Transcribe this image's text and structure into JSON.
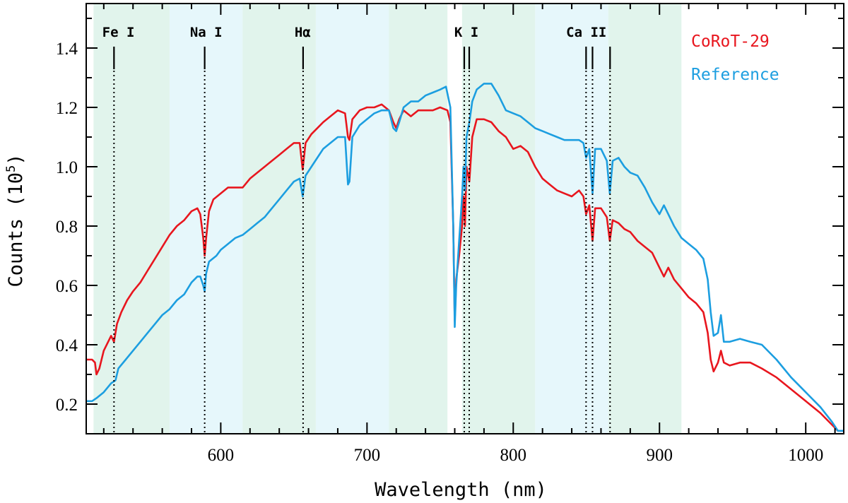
{
  "chart_data": {
    "type": "line",
    "xlabel": "Wavelength (nm)",
    "ylabel_text": "Counts (10",
    "ylabel_exp": "5",
    "ylabel_close": ")",
    "xlim": [
      508,
      1026
    ],
    "ylim": [
      0.1,
      1.55
    ],
    "x_ticks": [
      600,
      700,
      800,
      900,
      1000
    ],
    "x_tick_labels": [
      "600",
      "700",
      "800",
      "900",
      "1000"
    ],
    "y_ticks": [
      0.2,
      0.4,
      0.6,
      0.8,
      1.0,
      1.2,
      1.4
    ],
    "y_tick_labels": [
      "0.2",
      "0.4",
      "0.6",
      "0.8",
      "1.0",
      "1.2",
      "1.4"
    ],
    "bands": [
      {
        "x0": 513,
        "x1": 565,
        "color": "#e1f4ec"
      },
      {
        "x0": 565,
        "x1": 615,
        "color": "#e6f7fb"
      },
      {
        "x0": 615,
        "x1": 665,
        "color": "#e1f4ec"
      },
      {
        "x0": 665,
        "x1": 715,
        "color": "#e6f7fb"
      },
      {
        "x0": 715,
        "x1": 755,
        "color": "#e1f4ec"
      },
      {
        "x0": 765,
        "x1": 815,
        "color": "#e1f4ec"
      },
      {
        "x0": 815,
        "x1": 865,
        "color": "#e6f7fb"
      },
      {
        "x0": 865,
        "x1": 915,
        "color": "#e1f4ec"
      }
    ],
    "spectral_lines": [
      {
        "label": "Fe I",
        "label_x": 530,
        "lines": [
          527
        ]
      },
      {
        "label": "Na I",
        "label_x": 590,
        "lines": [
          589
        ]
      },
      {
        "label": "Hα",
        "label_x": 656,
        "lines": [
          656.3
        ]
      },
      {
        "label": "K I",
        "label_x": 768,
        "lines": [
          766.5,
          769.9
        ]
      },
      {
        "label": "Ca II",
        "label_x": 850,
        "lines": [
          849.8,
          854.2,
          866.2
        ]
      }
    ],
    "series": [
      {
        "name": "CoRoT-29",
        "color": "#e8161e",
        "points": [
          [
            508,
            0.35
          ],
          [
            512,
            0.35
          ],
          [
            514,
            0.34
          ],
          [
            515,
            0.3
          ],
          [
            517,
            0.32
          ],
          [
            520,
            0.38
          ],
          [
            525,
            0.43
          ],
          [
            527,
            0.41
          ],
          [
            529,
            0.47
          ],
          [
            532,
            0.51
          ],
          [
            536,
            0.55
          ],
          [
            540,
            0.58
          ],
          [
            545,
            0.61
          ],
          [
            550,
            0.65
          ],
          [
            555,
            0.69
          ],
          [
            560,
            0.73
          ],
          [
            565,
            0.77
          ],
          [
            570,
            0.8
          ],
          [
            575,
            0.82
          ],
          [
            580,
            0.85
          ],
          [
            584,
            0.86
          ],
          [
            586,
            0.84
          ],
          [
            588,
            0.76
          ],
          [
            589,
            0.7
          ],
          [
            590,
            0.76
          ],
          [
            592,
            0.85
          ],
          [
            595,
            0.89
          ],
          [
            600,
            0.91
          ],
          [
            605,
            0.93
          ],
          [
            610,
            0.93
          ],
          [
            615,
            0.93
          ],
          [
            620,
            0.96
          ],
          [
            625,
            0.98
          ],
          [
            630,
            1.0
          ],
          [
            635,
            1.02
          ],
          [
            640,
            1.04
          ],
          [
            645,
            1.06
          ],
          [
            650,
            1.08
          ],
          [
            654,
            1.08
          ],
          [
            656,
            0.99
          ],
          [
            658,
            1.08
          ],
          [
            662,
            1.11
          ],
          [
            666,
            1.13
          ],
          [
            670,
            1.15
          ],
          [
            675,
            1.17
          ],
          [
            680,
            1.19
          ],
          [
            685,
            1.18
          ],
          [
            687,
            1.1
          ],
          [
            688,
            1.09
          ],
          [
            690,
            1.16
          ],
          [
            695,
            1.19
          ],
          [
            700,
            1.2
          ],
          [
            705,
            1.2
          ],
          [
            710,
            1.21
          ],
          [
            715,
            1.19
          ],
          [
            718,
            1.15
          ],
          [
            720,
            1.13
          ],
          [
            722,
            1.16
          ],
          [
            725,
            1.19
          ],
          [
            730,
            1.17
          ],
          [
            735,
            1.19
          ],
          [
            740,
            1.19
          ],
          [
            745,
            1.19
          ],
          [
            750,
            1.2
          ],
          [
            755,
            1.19
          ],
          [
            757,
            1.15
          ],
          [
            759,
            0.8
          ],
          [
            760,
            0.48
          ],
          [
            761,
            0.62
          ],
          [
            763,
            0.7
          ],
          [
            765,
            0.8
          ],
          [
            766,
            0.9
          ],
          [
            767,
            0.8
          ],
          [
            768,
            1.0
          ],
          [
            770,
            0.95
          ],
          [
            772,
            1.1
          ],
          [
            775,
            1.16
          ],
          [
            780,
            1.16
          ],
          [
            785,
            1.15
          ],
          [
            790,
            1.12
          ],
          [
            795,
            1.1
          ],
          [
            800,
            1.06
          ],
          [
            805,
            1.07
          ],
          [
            810,
            1.05
          ],
          [
            815,
            1.0
          ],
          [
            820,
            0.96
          ],
          [
            825,
            0.94
          ],
          [
            830,
            0.92
          ],
          [
            835,
            0.91
          ],
          [
            840,
            0.9
          ],
          [
            845,
            0.92
          ],
          [
            848,
            0.9
          ],
          [
            849.8,
            0.84
          ],
          [
            852,
            0.87
          ],
          [
            854.2,
            0.75
          ],
          [
            856,
            0.86
          ],
          [
            860,
            0.86
          ],
          [
            864,
            0.83
          ],
          [
            866,
            0.75
          ],
          [
            868,
            0.82
          ],
          [
            872,
            0.81
          ],
          [
            876,
            0.79
          ],
          [
            880,
            0.78
          ],
          [
            885,
            0.75
          ],
          [
            890,
            0.73
          ],
          [
            895,
            0.71
          ],
          [
            900,
            0.66
          ],
          [
            903,
            0.63
          ],
          [
            906,
            0.66
          ],
          [
            910,
            0.62
          ],
          [
            915,
            0.59
          ],
          [
            920,
            0.56
          ],
          [
            925,
            0.54
          ],
          [
            930,
            0.51
          ],
          [
            933,
            0.44
          ],
          [
            935,
            0.35
          ],
          [
            937,
            0.31
          ],
          [
            940,
            0.34
          ],
          [
            942,
            0.38
          ],
          [
            944,
            0.34
          ],
          [
            948,
            0.33
          ],
          [
            955,
            0.34
          ],
          [
            962,
            0.34
          ],
          [
            970,
            0.32
          ],
          [
            980,
            0.29
          ],
          [
            990,
            0.25
          ],
          [
            1000,
            0.21
          ],
          [
            1010,
            0.17
          ],
          [
            1018,
            0.13
          ],
          [
            1022,
            0.11
          ],
          [
            1026,
            0.11
          ]
        ]
      },
      {
        "name": "Reference",
        "color": "#1c9ee0",
        "points": [
          [
            508,
            0.21
          ],
          [
            512,
            0.21
          ],
          [
            515,
            0.22
          ],
          [
            520,
            0.24
          ],
          [
            525,
            0.27
          ],
          [
            528,
            0.28
          ],
          [
            530,
            0.32
          ],
          [
            535,
            0.35
          ],
          [
            540,
            0.38
          ],
          [
            545,
            0.41
          ],
          [
            550,
            0.44
          ],
          [
            555,
            0.47
          ],
          [
            560,
            0.5
          ],
          [
            565,
            0.52
          ],
          [
            570,
            0.55
          ],
          [
            575,
            0.57
          ],
          [
            580,
            0.61
          ],
          [
            584,
            0.63
          ],
          [
            586,
            0.63
          ],
          [
            588,
            0.6
          ],
          [
            589,
            0.58
          ],
          [
            590,
            0.64
          ],
          [
            592,
            0.68
          ],
          [
            597,
            0.7
          ],
          [
            600,
            0.72
          ],
          [
            605,
            0.74
          ],
          [
            610,
            0.76
          ],
          [
            615,
            0.77
          ],
          [
            620,
            0.79
          ],
          [
            625,
            0.81
          ],
          [
            630,
            0.83
          ],
          [
            635,
            0.86
          ],
          [
            640,
            0.89
          ],
          [
            645,
            0.92
          ],
          [
            650,
            0.95
          ],
          [
            654,
            0.96
          ],
          [
            656,
            0.9
          ],
          [
            658,
            0.97
          ],
          [
            662,
            1.0
          ],
          [
            666,
            1.03
          ],
          [
            670,
            1.06
          ],
          [
            675,
            1.08
          ],
          [
            680,
            1.1
          ],
          [
            685,
            1.1
          ],
          [
            687,
            0.94
          ],
          [
            688,
            0.95
          ],
          [
            690,
            1.1
          ],
          [
            695,
            1.14
          ],
          [
            700,
            1.16
          ],
          [
            705,
            1.18
          ],
          [
            710,
            1.19
          ],
          [
            715,
            1.19
          ],
          [
            718,
            1.13
          ],
          [
            720,
            1.12
          ],
          [
            722,
            1.15
          ],
          [
            725,
            1.2
          ],
          [
            730,
            1.22
          ],
          [
            735,
            1.22
          ],
          [
            740,
            1.24
          ],
          [
            745,
            1.25
          ],
          [
            750,
            1.26
          ],
          [
            754,
            1.27
          ],
          [
            757,
            1.2
          ],
          [
            759,
            0.8
          ],
          [
            760,
            0.46
          ],
          [
            761,
            0.6
          ],
          [
            763,
            0.75
          ],
          [
            765,
            0.9
          ],
          [
            766,
            1.0
          ],
          [
            767,
            0.92
          ],
          [
            768,
            1.1
          ],
          [
            770,
            1.15
          ],
          [
            772,
            1.22
          ],
          [
            775,
            1.26
          ],
          [
            780,
            1.28
          ],
          [
            785,
            1.28
          ],
          [
            790,
            1.24
          ],
          [
            795,
            1.19
          ],
          [
            800,
            1.18
          ],
          [
            805,
            1.17
          ],
          [
            810,
            1.15
          ],
          [
            815,
            1.13
          ],
          [
            820,
            1.12
          ],
          [
            825,
            1.11
          ],
          [
            830,
            1.1
          ],
          [
            835,
            1.09
          ],
          [
            840,
            1.09
          ],
          [
            845,
            1.09
          ],
          [
            848,
            1.08
          ],
          [
            849.8,
            1.03
          ],
          [
            852,
            1.06
          ],
          [
            854.2,
            0.91
          ],
          [
            856,
            1.06
          ],
          [
            860,
            1.06
          ],
          [
            864,
            1.02
          ],
          [
            866,
            0.91
          ],
          [
            868,
            1.02
          ],
          [
            872,
            1.03
          ],
          [
            876,
            1.0
          ],
          [
            880,
            0.98
          ],
          [
            885,
            0.97
          ],
          [
            890,
            0.93
          ],
          [
            895,
            0.88
          ],
          [
            900,
            0.84
          ],
          [
            903,
            0.87
          ],
          [
            906,
            0.84
          ],
          [
            910,
            0.8
          ],
          [
            915,
            0.76
          ],
          [
            920,
            0.74
          ],
          [
            925,
            0.72
          ],
          [
            930,
            0.69
          ],
          [
            933,
            0.62
          ],
          [
            935,
            0.51
          ],
          [
            937,
            0.43
          ],
          [
            940,
            0.44
          ],
          [
            942,
            0.5
          ],
          [
            944,
            0.41
          ],
          [
            948,
            0.41
          ],
          [
            955,
            0.42
          ],
          [
            962,
            0.41
          ],
          [
            970,
            0.4
          ],
          [
            980,
            0.35
          ],
          [
            990,
            0.29
          ],
          [
            1000,
            0.24
          ],
          [
            1010,
            0.19
          ],
          [
            1018,
            0.14
          ],
          [
            1022,
            0.11
          ],
          [
            1026,
            0.11
          ]
        ]
      }
    ],
    "legend": [
      {
        "label": "CoRoT-29",
        "color": "#e8161e"
      },
      {
        "label": "Reference",
        "color": "#1c9ee0"
      }
    ]
  }
}
